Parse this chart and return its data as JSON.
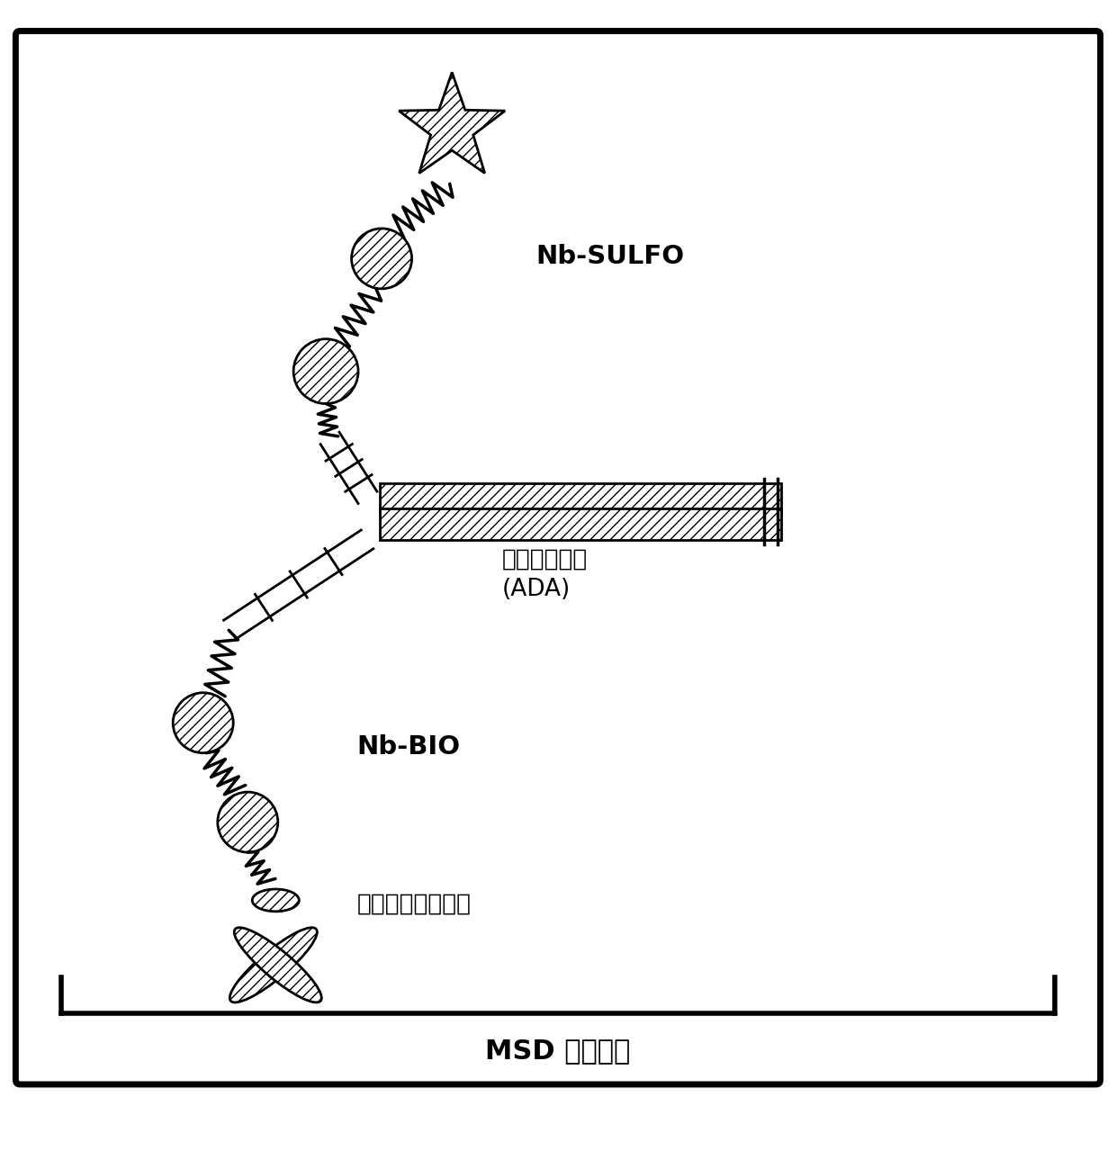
{
  "title": "MSD 桥接形式",
  "label_nb_sulfo": "Nb-SULFO",
  "label_ada": "抗－药物抗体\n(ADA)",
  "label_nb_bio": "Nb-BIO",
  "label_strep": "链霨抗生物素蛋白",
  "bg_color": "#ffffff",
  "line_color": "#000000",
  "hatch": "///",
  "figsize": [
    12.4,
    12.89
  ],
  "dpi": 100
}
